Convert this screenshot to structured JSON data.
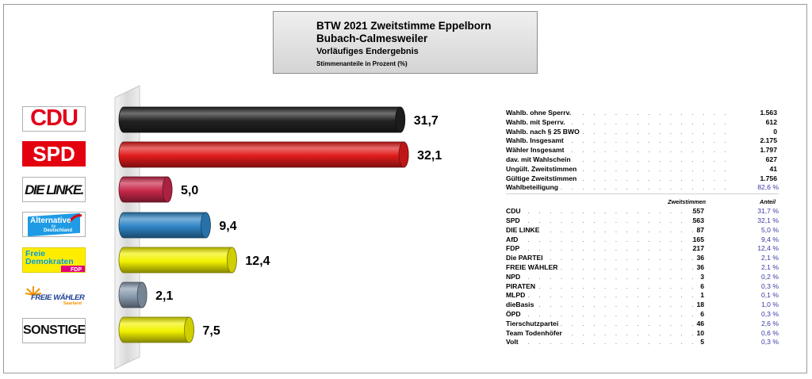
{
  "header": {
    "title_line1": "BTW 2021 Zweitstimme Eppelborn",
    "title_line2": "Bubach-Calmesweiler",
    "subtitle": "Vorläufiges Endergebnis",
    "unit_note": "Stimmenanteile in Prozent (%)"
  },
  "logos": {
    "cdu": "CDU",
    "spd": "SPD",
    "linke": "DIE LINKE.",
    "afd_line1": "Alternative",
    "afd_line2": "für",
    "afd_line3": "Deutschland",
    "fdp_line1": "Freie",
    "fdp_line2": "Demokraten",
    "fdp_line3": "FDP",
    "fw_line1": "FREIE WÄHLER",
    "fw_line2": "Saarland",
    "sonstige": "SONSTIGE"
  },
  "chart_data": {
    "type": "bar",
    "orientation": "horizontal",
    "categories": [
      "CDU",
      "SPD",
      "DIE LINKE.",
      "Alternative für Deutschland",
      "Freie Demokraten FDP",
      "FREIE WÄHLER Saarland",
      "SONSTIGE"
    ],
    "values": [
      31.7,
      32.1,
      5.0,
      9.4,
      12.4,
      2.1,
      7.5
    ],
    "value_labels": [
      "31,7",
      "32,1",
      "5,0",
      "9,4",
      "12,4",
      "2,1",
      "7,5"
    ],
    "colors": [
      "#222222",
      "#e01b1b",
      "#c8284a",
      "#2f86c6",
      "#f2f200",
      "#8a9cb0",
      "#f2f200"
    ],
    "xlim": [
      0,
      35
    ]
  },
  "stats": {
    "summary": [
      {
        "label": "Wahlb. ohne Sperrv.",
        "value": "1.563"
      },
      {
        "label": "Wahlb. mit Sperrv.",
        "value": "612"
      },
      {
        "label": "Wahlb. nach § 25 BWO",
        "value": "0"
      },
      {
        "label": "Wahlb. Insgesamt",
        "value": "2.175"
      },
      {
        "label": "Wähler Insgesamt",
        "value": "1.797"
      },
      {
        "label": "dav. mit Wahlschein",
        "value": "627"
      },
      {
        "label": "Ungült. Zweitstimmen",
        "value": "41"
      },
      {
        "label": "Gültige Zweitstimmen",
        "value": "1.756"
      },
      {
        "label": "Wahlbeteiligung",
        "value": "82,6 %"
      }
    ],
    "col_votes": "Zweitstimmen",
    "col_share": "Anteil",
    "parties": [
      {
        "name": "CDU",
        "votes": "557",
        "share": "31,7 %"
      },
      {
        "name": "SPD",
        "votes": "563",
        "share": "32,1 %"
      },
      {
        "name": "DIE LINKE",
        "votes": "87",
        "share": "5,0 %"
      },
      {
        "name": "AfD",
        "votes": "165",
        "share": "9,4 %"
      },
      {
        "name": "FDP",
        "votes": "217",
        "share": "12,4 %"
      },
      {
        "name": "Die PARTEI",
        "votes": "36",
        "share": "2,1 %"
      },
      {
        "name": "FREIE WÄHLER",
        "votes": "36",
        "share": "2,1 %"
      },
      {
        "name": "NPD",
        "votes": "3",
        "share": "0,2 %"
      },
      {
        "name": "PIRATEN",
        "votes": "6",
        "share": "0,3 %"
      },
      {
        "name": "MLPD",
        "votes": "1",
        "share": "0,1 %"
      },
      {
        "name": "dieBasis",
        "votes": "18",
        "share": "1,0 %"
      },
      {
        "name": "ÖPD",
        "votes": "6",
        "share": "0,3 %"
      },
      {
        "name": "Tierschutzpartei",
        "votes": "46",
        "share": "2,6 %"
      },
      {
        "name": "Team Todenhöfer",
        "votes": "10",
        "share": "0,6 %"
      },
      {
        "name": "Volt",
        "votes": "5",
        "share": "0,3 %"
      }
    ]
  }
}
